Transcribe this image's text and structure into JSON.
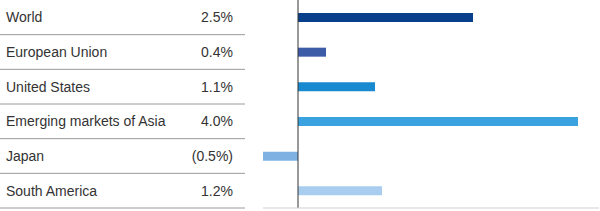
{
  "chart_data": {
    "type": "bar",
    "orientation": "horizontal",
    "categories": [
      "World",
      "European Union",
      "United States",
      "Emerging markets of Asia",
      "Japan",
      "South America"
    ],
    "values": [
      2.5,
      0.4,
      1.1,
      4.0,
      -0.5,
      1.2
    ],
    "value_labels": [
      "2.5%",
      "0.4%",
      "1.1%",
      "4.0%",
      "(0.5%)",
      "1.2%"
    ],
    "colors": [
      "#0a3f8c",
      "#3d5ca8",
      "#1a8ad0",
      "#3aa2de",
      "#7fb2e2",
      "#a9cdee"
    ],
    "xlim": [
      -0.5,
      4.3
    ],
    "xticks": [
      0
    ],
    "data_labels": true,
    "tick_labels": "y",
    "grid": false
  }
}
